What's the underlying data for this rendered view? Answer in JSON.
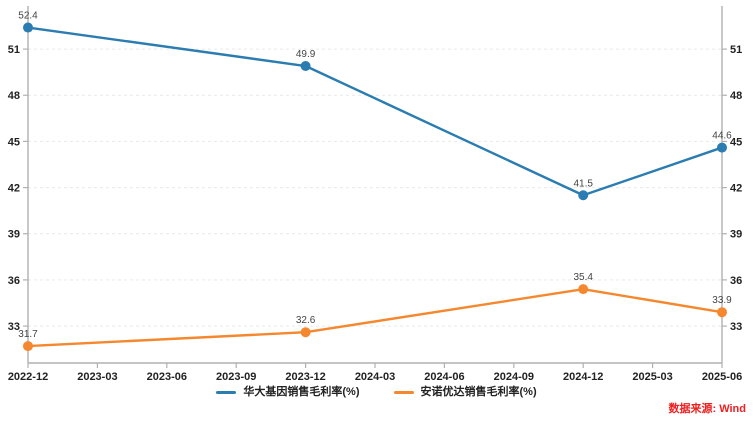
{
  "chart_data": {
    "type": "line",
    "title": "",
    "x": [
      "2022-12",
      "2023-03",
      "2023-06",
      "2023-09",
      "2023-12",
      "2024-03",
      "2024-06",
      "2024-09",
      "2024-12",
      "2025-03",
      "2025-06"
    ],
    "series": [
      {
        "name": "华大基因销售毛利率(%)",
        "color": "#2b7cb0",
        "x": [
          "2022-12",
          "2023-12",
          "2024-12",
          "2025-06"
        ],
        "values": [
          52.4,
          49.9,
          41.5,
          44.6
        ]
      },
      {
        "name": "安诺优达销售毛利率(%)",
        "color": "#f5882e",
        "x": [
          "2022-12",
          "2023-12",
          "2024-12",
          "2025-06"
        ],
        "values": [
          31.7,
          32.6,
          35.4,
          33.9
        ]
      }
    ],
    "y_ticks": [
      33,
      36,
      39,
      42,
      45,
      48,
      51
    ],
    "ylim": [
      30.6,
      53.8
    ],
    "xlabel": "",
    "ylabel": "",
    "grid": "dashed-horizontal",
    "legend_position": "bottom-center",
    "dual_y_axis": true,
    "data_labels_shown": true,
    "source_note": "数据来源: Wind",
    "source_color": "#ef2020",
    "axis_color": "#b0b0b0",
    "grid_color": "#e9e9e9",
    "tick_label_color": "#222222",
    "data_label_color": "#444444",
    "background": "#ffffff"
  }
}
